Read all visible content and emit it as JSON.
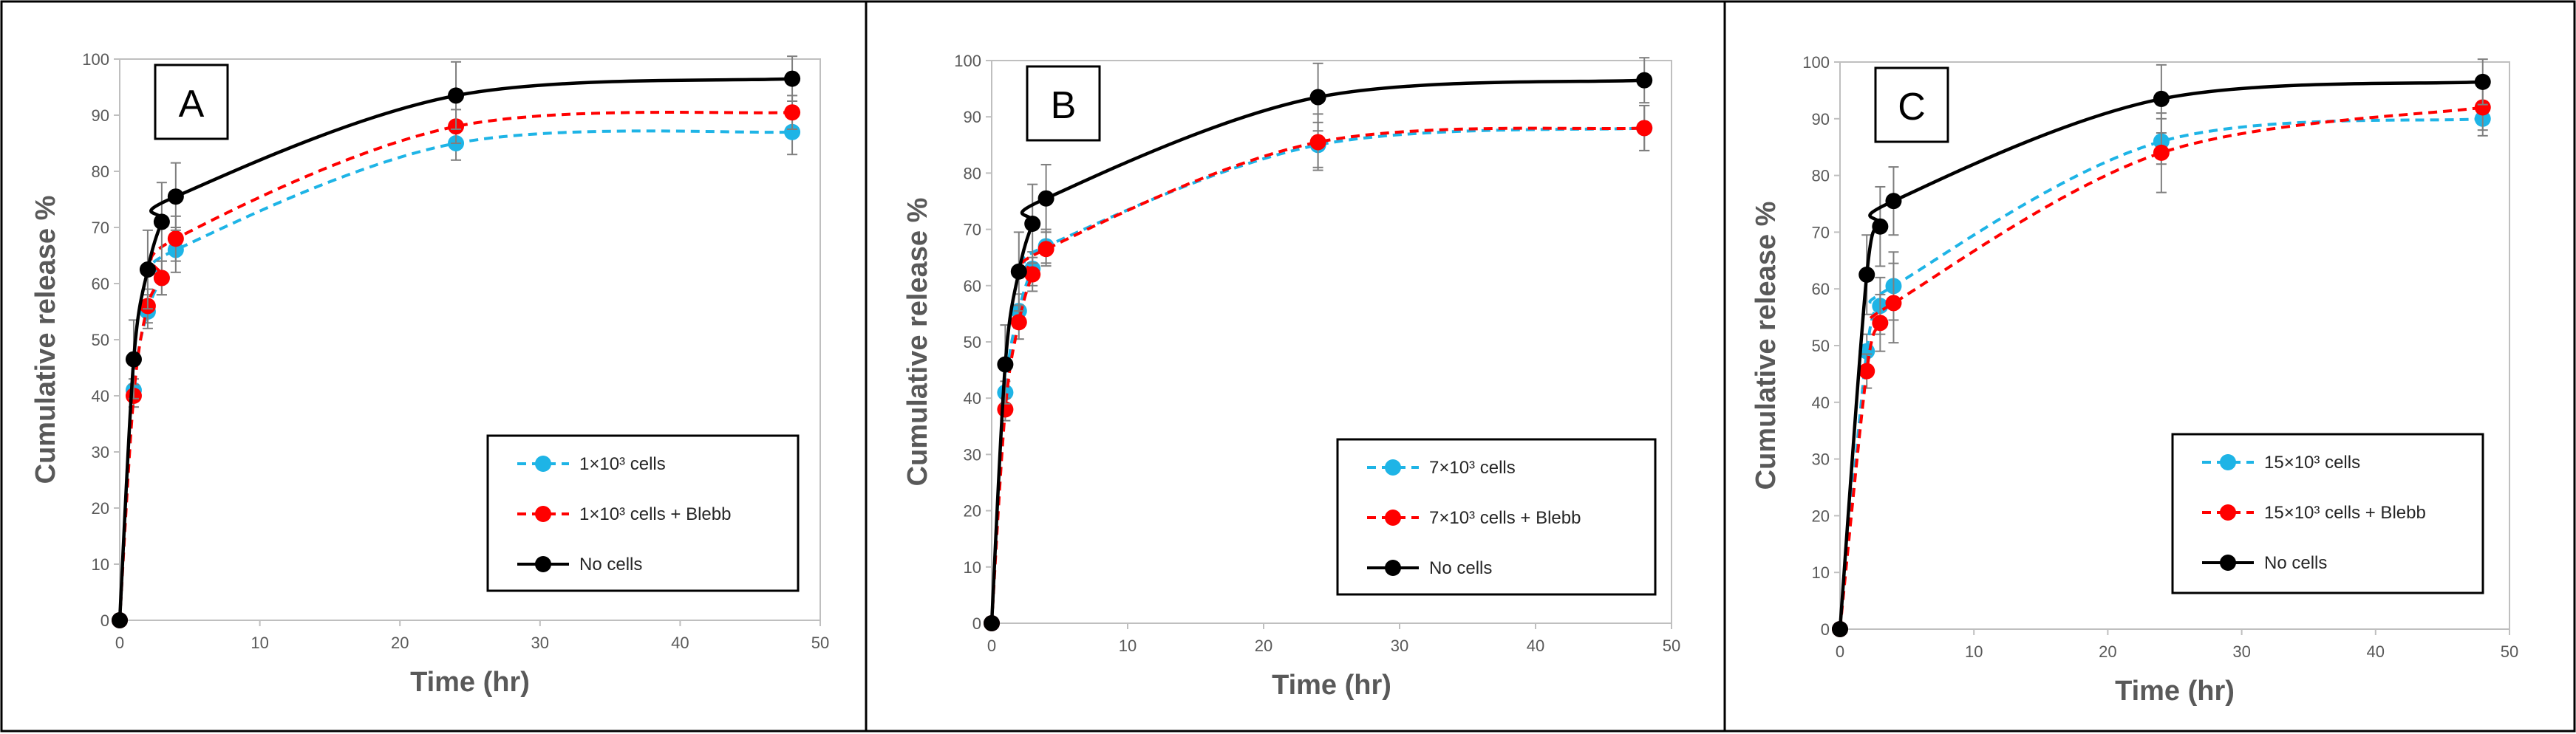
{
  "colors": {
    "series_blue": "#1eb4e6",
    "series_red": "#ff0000",
    "series_black": "#000000",
    "axis": "#bfbfbf",
    "text": "#595959",
    "frame": "#000000"
  },
  "chart_data": [
    {
      "type": "scatter",
      "panel_label": "A",
      "xlabel": "Time (hr)",
      "ylabel": "Cumulative release %",
      "xlim": [
        0,
        50
      ],
      "ylim": [
        0,
        100
      ],
      "xticks": [
        "0",
        "10",
        "20",
        "30",
        "40",
        "50"
      ],
      "yticks": [
        "0",
        "10",
        "20",
        "30",
        "40",
        "50",
        "60",
        "70",
        "80",
        "90",
        "100"
      ],
      "grid": false,
      "legend_position": "lower-right",
      "series": [
        {
          "name": "1×10³ cells",
          "style": "dashed",
          "color": "#1eb4e6",
          "x": [
            0,
            1,
            2,
            3,
            4,
            24,
            48
          ],
          "y": [
            0,
            41,
            55,
            61,
            66,
            85,
            87
          ],
          "err": [
            0,
            2,
            3,
            3,
            4,
            3,
            4
          ]
        },
        {
          "name": "1×10³ cells + Blebb",
          "style": "dashed",
          "color": "#ff0000",
          "x": [
            0,
            1,
            2,
            3,
            4,
            24,
            48
          ],
          "y": [
            0,
            40,
            56,
            61,
            68,
            88,
            90.5
          ],
          "err": [
            0,
            2,
            3,
            3,
            4,
            3,
            3
          ]
        },
        {
          "name": "No cells",
          "style": "solid",
          "color": "#000000",
          "x": [
            0,
            1,
            2,
            3,
            4,
            24,
            48
          ],
          "y": [
            0,
            46.5,
            62.5,
            71,
            75.5,
            93.5,
            96.5
          ],
          "err": [
            0,
            7,
            7,
            7,
            6,
            6,
            4
          ]
        }
      ]
    },
    {
      "type": "scatter",
      "panel_label": "B",
      "xlabel": "Time (hr)",
      "ylabel": "Cumulative release %",
      "xlim": [
        0,
        50
      ],
      "ylim": [
        0,
        100
      ],
      "xticks": [
        "0",
        "10",
        "20",
        "30",
        "40",
        "50"
      ],
      "yticks": [
        "0",
        "10",
        "20",
        "30",
        "40",
        "50",
        "60",
        "70",
        "80",
        "90",
        "100"
      ],
      "grid": false,
      "legend_position": "lower-right",
      "series": [
        {
          "name": "7×10³ cells",
          "style": "dashed",
          "color": "#1eb4e6",
          "x": [
            0,
            1,
            2,
            3,
            4,
            24,
            48
          ],
          "y": [
            0,
            41,
            55.5,
            63,
            67,
            85,
            88
          ],
          "err": [
            0,
            2,
            3,
            3,
            3,
            4,
            4
          ]
        },
        {
          "name": "7×10³ cells + Blebb",
          "style": "dashed",
          "color": "#ff0000",
          "x": [
            0,
            1,
            2,
            3,
            4,
            24,
            48
          ],
          "y": [
            0,
            38,
            53.5,
            62,
            66.5,
            85.5,
            88
          ],
          "err": [
            0,
            2,
            3,
            3,
            3,
            5,
            4
          ]
        },
        {
          "name": "No cells",
          "style": "solid",
          "color": "#000000",
          "x": [
            0,
            1,
            2,
            3,
            4,
            24,
            48
          ],
          "y": [
            0,
            46,
            62.5,
            71,
            75.5,
            93.5,
            96.5
          ],
          "err": [
            0,
            7,
            7,
            7,
            6,
            6,
            4
          ]
        }
      ]
    },
    {
      "type": "scatter",
      "panel_label": "C",
      "xlabel": "Time (hr)",
      "ylabel": "Cumulative release %",
      "xlim": [
        0,
        50
      ],
      "ylim": [
        0,
        100
      ],
      "xticks": [
        "0",
        "10",
        "20",
        "30",
        "40",
        "50"
      ],
      "yticks": [
        "0",
        "10",
        "20",
        "30",
        "40",
        "50",
        "60",
        "70",
        "80",
        "90",
        "100"
      ],
      "grid": false,
      "legend_position": "lower-right",
      "series": [
        {
          "name": "15×10³ cells",
          "style": "dashed",
          "color": "#1eb4e6",
          "x": [
            0,
            2,
            3,
            4,
            24,
            48
          ],
          "y": [
            0,
            49,
            57,
            60.5,
            86,
            90
          ],
          "err": [
            0,
            3,
            5,
            6,
            4,
            3
          ]
        },
        {
          "name": "15×10³ cells + Blebb",
          "style": "dashed",
          "color": "#ff0000",
          "x": [
            0,
            2,
            3,
            4,
            24,
            48
          ],
          "y": [
            0,
            45.5,
            54,
            57.5,
            84,
            92
          ],
          "err": [
            0,
            3,
            5,
            7,
            7,
            4
          ]
        },
        {
          "name": "No cells",
          "style": "solid",
          "color": "#000000",
          "x": [
            0,
            2,
            3,
            4,
            24,
            48
          ],
          "y": [
            0,
            62.5,
            71,
            75.5,
            93.5,
            96.5
          ],
          "err": [
            0,
            7,
            7,
            6,
            6,
            4
          ]
        }
      ]
    }
  ]
}
